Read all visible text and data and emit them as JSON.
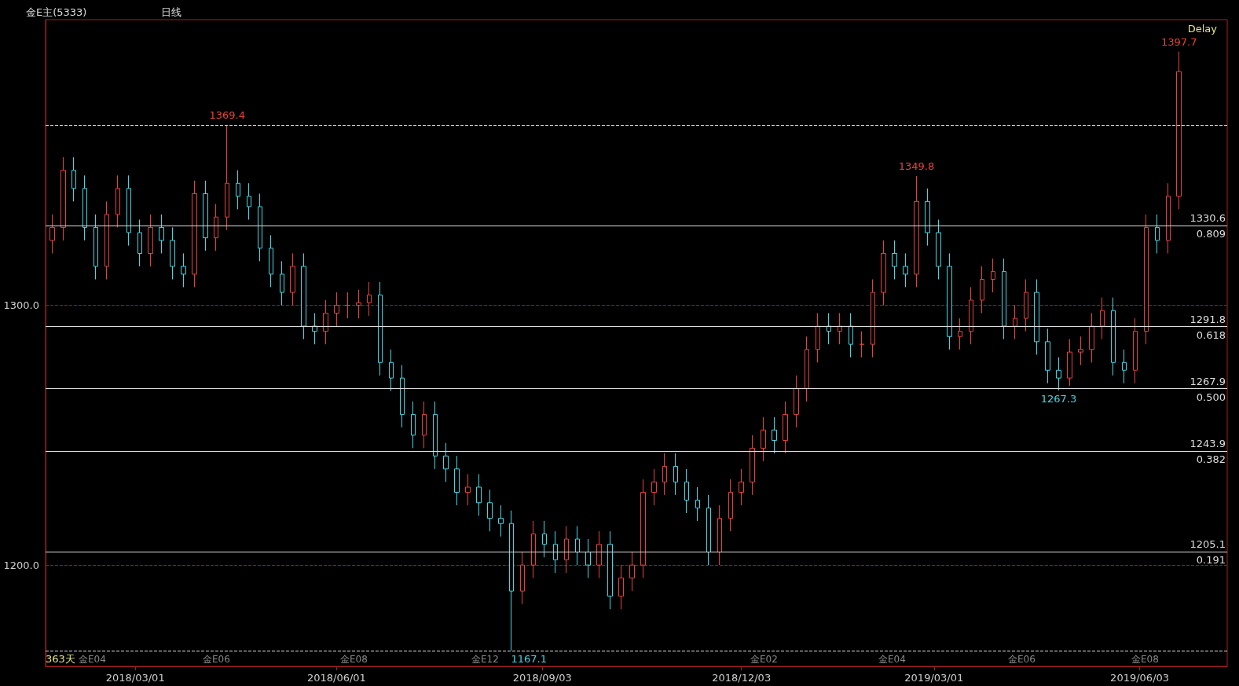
{
  "chart_data": {
    "type": "candlestick",
    "title": "金E主(5333)",
    "subtitle": "日线",
    "colors": [
      "#e8413c",
      "#e8413c",
      "#3fd9e6",
      "#3fd9e6",
      "#3fd9e6",
      "#e8413c",
      "#e8413c",
      "#3fd9e6",
      "#3fd9e6",
      "#e8413c",
      "#3fd9e6",
      "#3fd9e6",
      "#3fd9e6",
      "#e8413c",
      "#3fd9e6",
      "#e8413c",
      "#e8413c",
      "#3fd9e6",
      "#3fd9e6",
      "#3fd9e6",
      "#3fd9e6",
      "#3fd9e6",
      "#e8413c",
      "#3fd9e6",
      "#3fd9e6",
      "#e8413c",
      "#e8413c",
      "#e8413c",
      "#e8413c",
      "#e8413c",
      "#3fd9e6",
      "#3fd9e6",
      "#3fd9e6",
      "#3fd9e6",
      "#e8413c",
      "#3fd9e6",
      "#3fd9e6",
      "#3fd9e6",
      "#e8413c",
      "#3fd9e6",
      "#3fd9e6",
      "#3fd9e6",
      "#3fd9e6",
      "#e8413c",
      "#e8413c",
      "#3fd9e6",
      "#3fd9e6",
      "#e8413c",
      "#3fd9e6",
      "#3fd9e6",
      "#e8413c",
      "#3fd9e6",
      "#e8413c",
      "#e8413c",
      "#e8413c",
      "#e8413c",
      "#e8413c",
      "#3fd9e6",
      "#3fd9e6",
      "#3fd9e6",
      "#3fd9e6",
      "#e8413c",
      "#e8413c",
      "#e8413c",
      "#e8413c",
      "#e8413c",
      "#3fd9e6",
      "#e8413c",
      "#e8413c",
      "#e8413c",
      "#e8413c",
      "#3fd9e6",
      "#e8413c",
      "#3fd9e6",
      "#e8413c",
      "#e8413c",
      "#e8413c",
      "#3fd9e6",
      "#3fd9e6",
      "#e8413c",
      "#3fd9e6",
      "#3fd9e6",
      "#3fd9e6",
      "#e8413c",
      "#e8413c",
      "#e8413c",
      "#e8413c",
      "#3fd9e6",
      "#e8413c",
      "#e8413c",
      "#3fd9e6",
      "#3fd9e6",
      "#3fd9e6",
      "#e8413c",
      "#e8413c",
      "#e8413c",
      "#e8413c",
      "#3fd9e6",
      "#3fd9e6",
      "#e8413c",
      "#e8413c",
      "#3fd9e6",
      "#e8413c",
      "#e8413c"
    ],
    "x": [
      "2018-01-22",
      "2018-01-27",
      "2018-02-01",
      "2018-02-06",
      "2018-02-11",
      "2018-02-16",
      "2018-02-21",
      "2018-02-26",
      "2018-03-03",
      "2018-03-08",
      "2018-03-13",
      "2018-03-18",
      "2018-03-23",
      "2018-03-28",
      "2018-04-02",
      "2018-04-07",
      "2018-04-12",
      "2018-04-17",
      "2018-04-22",
      "2018-04-27",
      "2018-05-02",
      "2018-05-07",
      "2018-05-12",
      "2018-05-17",
      "2018-05-22",
      "2018-05-27",
      "2018-06-01",
      "2018-06-06",
      "2018-06-11",
      "2018-06-16",
      "2018-06-21",
      "2018-06-26",
      "2018-07-01",
      "2018-07-06",
      "2018-07-11",
      "2018-07-16",
      "2018-07-21",
      "2018-07-26",
      "2018-07-31",
      "2018-08-05",
      "2018-08-10",
      "2018-08-15",
      "2018-08-20",
      "2018-08-25",
      "2018-08-30",
      "2018-09-04",
      "2018-09-09",
      "2018-09-14",
      "2018-09-19",
      "2018-09-24",
      "2018-09-29",
      "2018-10-04",
      "2018-10-09",
      "2018-10-14",
      "2018-10-19",
      "2018-10-24",
      "2018-10-29",
      "2018-11-03",
      "2018-11-08",
      "2018-11-13",
      "2018-11-18",
      "2018-11-23",
      "2018-11-28",
      "2018-12-03",
      "2018-12-08",
      "2018-12-13",
      "2018-12-18",
      "2018-12-23",
      "2018-12-28",
      "2019-01-02",
      "2019-01-07",
      "2019-01-12",
      "2019-01-17",
      "2019-01-22",
      "2019-01-27",
      "2019-02-01",
      "2019-02-06",
      "2019-02-11",
      "2019-02-16",
      "2019-02-21",
      "2019-02-26",
      "2019-03-03",
      "2019-03-08",
      "2019-03-13",
      "2019-03-18",
      "2019-03-23",
      "2019-03-28",
      "2019-04-02",
      "2019-04-07",
      "2019-04-12",
      "2019-04-17",
      "2019-04-22",
      "2019-04-27",
      "2019-05-02",
      "2019-05-07",
      "2019-05-12",
      "2019-05-17",
      "2019-05-22",
      "2019-05-27",
      "2019-06-01",
      "2019-06-06",
      "2019-06-11",
      "2019-06-16",
      "2019-06-21"
    ],
    "ohlc": [
      [
        1325,
        1335,
        1320,
        1330
      ],
      [
        1330,
        1357,
        1325,
        1352
      ],
      [
        1352,
        1357,
        1340,
        1345
      ],
      [
        1345,
        1350,
        1325,
        1330
      ],
      [
        1330,
        1335,
        1310,
        1315
      ],
      [
        1315,
        1340,
        1310,
        1335
      ],
      [
        1335,
        1350,
        1330,
        1345
      ],
      [
        1345,
        1350,
        1323,
        1328
      ],
      [
        1328,
        1333,
        1315,
        1320
      ],
      [
        1320,
        1335,
        1315,
        1330
      ],
      [
        1330,
        1335,
        1320,
        1325
      ],
      [
        1325,
        1330,
        1310,
        1315
      ],
      [
        1315,
        1320,
        1307,
        1312
      ],
      [
        1312,
        1348,
        1307,
        1343
      ],
      [
        1343,
        1348,
        1321,
        1326
      ],
      [
        1326,
        1339,
        1321,
        1334
      ],
      [
        1334,
        1369.4,
        1329,
        1347
      ],
      [
        1347,
        1352,
        1337,
        1342
      ],
      [
        1342,
        1347,
        1333,
        1338
      ],
      [
        1338,
        1343,
        1317,
        1322
      ],
      [
        1322,
        1327,
        1307,
        1312
      ],
      [
        1312,
        1317,
        1300,
        1305
      ],
      [
        1305,
        1320,
        1300,
        1315
      ],
      [
        1315,
        1320,
        1287,
        1292
      ],
      [
        1292,
        1297,
        1285,
        1290
      ],
      [
        1290,
        1302,
        1285,
        1297
      ],
      [
        1297,
        1305,
        1292,
        1300
      ],
      [
        1300,
        1305,
        1295,
        1300
      ],
      [
        1300,
        1306,
        1295,
        1301
      ],
      [
        1301,
        1309,
        1296,
        1304
      ],
      [
        1304,
        1309,
        1273,
        1278
      ],
      [
        1278,
        1283,
        1267,
        1272
      ],
      [
        1272,
        1277,
        1253,
        1258
      ],
      [
        1258,
        1263,
        1245,
        1250
      ],
      [
        1250,
        1263,
        1245,
        1258
      ],
      [
        1258,
        1263,
        1237,
        1242
      ],
      [
        1242,
        1247,
        1232,
        1237
      ],
      [
        1237,
        1242,
        1223,
        1228
      ],
      [
        1228,
        1235,
        1223,
        1230
      ],
      [
        1230,
        1235,
        1219,
        1224
      ],
      [
        1224,
        1229,
        1213,
        1218
      ],
      [
        1218,
        1223,
        1211,
        1216
      ],
      [
        1216,
        1221,
        1167.1,
        1190
      ],
      [
        1190,
        1205,
        1185,
        1200
      ],
      [
        1200,
        1217,
        1195,
        1212
      ],
      [
        1212,
        1217,
        1203,
        1208
      ],
      [
        1208,
        1213,
        1197,
        1202
      ],
      [
        1202,
        1215,
        1197,
        1210
      ],
      [
        1210,
        1215,
        1200,
        1205
      ],
      [
        1205,
        1210,
        1195,
        1200
      ],
      [
        1200,
        1213,
        1195,
        1208
      ],
      [
        1208,
        1213,
        1183,
        1188
      ],
      [
        1188,
        1200,
        1183,
        1195
      ],
      [
        1195,
        1205,
        1190,
        1200
      ],
      [
        1200,
        1233,
        1195,
        1228
      ],
      [
        1228,
        1237,
        1223,
        1232
      ],
      [
        1232,
        1243,
        1227,
        1238
      ],
      [
        1238,
        1243,
        1227,
        1232
      ],
      [
        1232,
        1237,
        1220,
        1225
      ],
      [
        1225,
        1230,
        1217,
        1222
      ],
      [
        1222,
        1227,
        1200,
        1205
      ],
      [
        1205,
        1223,
        1200,
        1218
      ],
      [
        1218,
        1233,
        1213,
        1228
      ],
      [
        1228,
        1237,
        1223,
        1232
      ],
      [
        1232,
        1250,
        1227,
        1245
      ],
      [
        1245,
        1257,
        1240,
        1252
      ],
      [
        1252,
        1257,
        1243,
        1248
      ],
      [
        1248,
        1263,
        1243,
        1258
      ],
      [
        1258,
        1273,
        1253,
        1268
      ],
      [
        1268,
        1288,
        1263,
        1283
      ],
      [
        1283,
        1297,
        1278,
        1292
      ],
      [
        1292,
        1297,
        1285,
        1290
      ],
      [
        1290,
        1297,
        1285,
        1292
      ],
      [
        1292,
        1297,
        1280,
        1285
      ],
      [
        1285,
        1290,
        1280,
        1285
      ],
      [
        1285,
        1310,
        1280,
        1305
      ],
      [
        1305,
        1325,
        1300,
        1320
      ],
      [
        1320,
        1325,
        1310,
        1315
      ],
      [
        1315,
        1320,
        1307,
        1312
      ],
      [
        1312,
        1349.8,
        1307,
        1340
      ],
      [
        1340,
        1345,
        1323,
        1328
      ],
      [
        1328,
        1333,
        1310,
        1315
      ],
      [
        1315,
        1320,
        1283,
        1288
      ],
      [
        1288,
        1295,
        1283,
        1290
      ],
      [
        1290,
        1307,
        1285,
        1302
      ],
      [
        1302,
        1315,
        1297,
        1310
      ],
      [
        1310,
        1318,
        1305,
        1313
      ],
      [
        1313,
        1318,
        1287,
        1292
      ],
      [
        1292,
        1300,
        1287,
        1295
      ],
      [
        1295,
        1310,
        1290,
        1305
      ],
      [
        1305,
        1310,
        1281,
        1286
      ],
      [
        1286,
        1291,
        1270,
        1275
      ],
      [
        1275,
        1280,
        1267.3,
        1272
      ],
      [
        1272,
        1287,
        1269,
        1282
      ],
      [
        1282,
        1288,
        1277,
        1283
      ],
      [
        1283,
        1297,
        1278,
        1292
      ],
      [
        1292,
        1303,
        1287,
        1298
      ],
      [
        1298,
        1303,
        1273,
        1278
      ],
      [
        1278,
        1283,
        1270,
        1275
      ],
      [
        1275,
        1295,
        1270,
        1290
      ],
      [
        1290,
        1335,
        1285,
        1330
      ],
      [
        1330,
        1335,
        1320,
        1325
      ],
      [
        1325,
        1347,
        1320,
        1342
      ],
      [
        1342,
        1397.7,
        1337,
        1390
      ]
    ],
    "xlim": [
      "2018-01-19",
      "2019-07-13"
    ],
    "xticks": [
      {
        "value": "2018-03-01",
        "label": "2018/03/01"
      },
      {
        "value": "2018-06-01",
        "label": "2018/06/01"
      },
      {
        "value": "2018-09-03",
        "label": "2018/09/03"
      },
      {
        "value": "2018-12-03",
        "label": "2018/12/03"
      },
      {
        "value": "2019-03-01",
        "label": "2019/03/01"
      },
      {
        "value": "2019-06-03",
        "label": "2019/06/03"
      }
    ],
    "ylim": [
      1161,
      1410
    ],
    "yticks": [
      {
        "value": 1200,
        "label": "1200.0"
      },
      {
        "value": 1300,
        "label": "1300.0"
      }
    ],
    "grid": "y",
    "ref_lines": [
      {
        "axis": "y",
        "value": 1369.4,
        "line_style": "dashed",
        "color": "#dddddd"
      },
      {
        "axis": "y",
        "value": 1330.6,
        "label": "1330.6\n0.809",
        "color": "#dddddd"
      },
      {
        "axis": "y",
        "value": 1291.8,
        "label": "1291.8\n0.618",
        "color": "#dddddd"
      },
      {
        "axis": "y",
        "value": 1267.9,
        "label": "1267.9\n0.500",
        "color": "#dddddd"
      },
      {
        "axis": "y",
        "value": 1243.9,
        "label": "1243.9\n0.382",
        "color": "#dddddd"
      },
      {
        "axis": "y",
        "value": 1205.1,
        "label": "1205.1\n0.191",
        "color": "#dddddd"
      },
      {
        "axis": "y",
        "value": 1167.1,
        "line_style": "dashed",
        "color": "#dddddd"
      }
    ],
    "annotations": [
      "Delay",
      "363天",
      {
        "text": "1369.4",
        "x": "2018-04-12",
        "y": 1369.4
      },
      {
        "text": "1167.1",
        "x": "2018-08-20",
        "y": 1167.1
      },
      {
        "text": "1349.8",
        "x": "2019-02-21",
        "y": 1349.8
      },
      {
        "text": "1267.3",
        "x": "2019-04-27",
        "y": 1267.3
      },
      {
        "text": "1397.7",
        "x": "2019-06-21",
        "y": 1397.7
      },
      "金E04",
      "金E06",
      "金E08",
      "金E12",
      "金E02",
      "金E04",
      "金E06",
      "金E08"
    ]
  }
}
